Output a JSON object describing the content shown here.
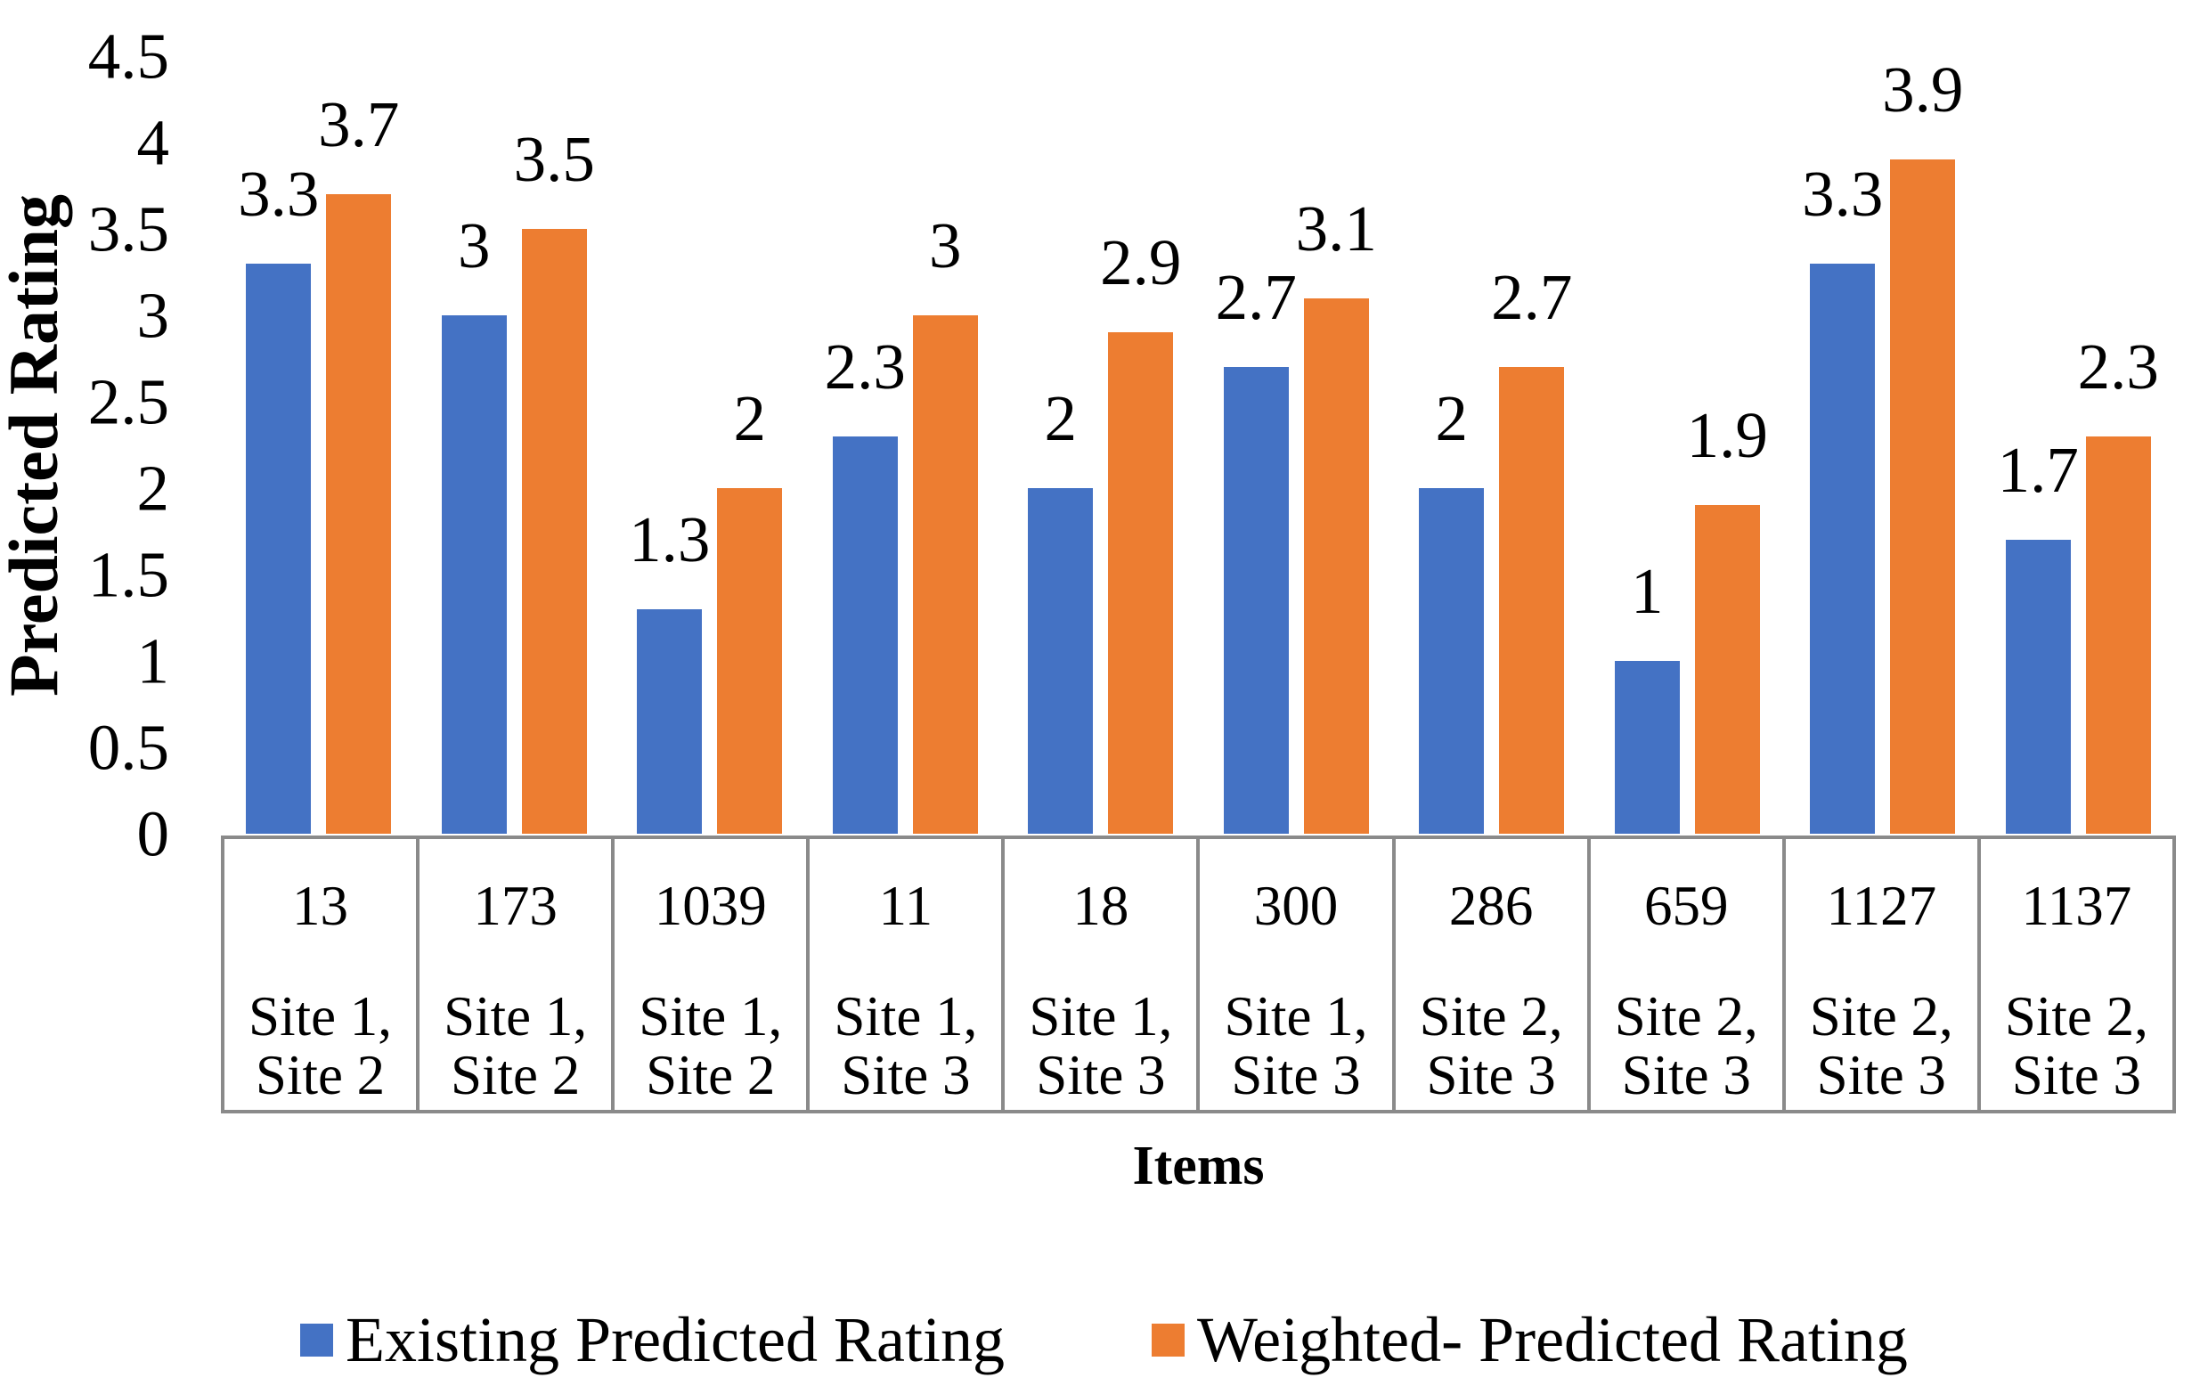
{
  "chart_data": {
    "type": "bar",
    "title": "",
    "xlabel": "Items",
    "ylabel": "Predicted Rating",
    "ylim": [
      0,
      4.5
    ],
    "yticks": [
      0,
      0.5,
      1,
      1.5,
      2,
      2.5,
      3,
      3.5,
      4,
      4.5
    ],
    "grid": false,
    "legend_position": "bottom",
    "categories": [
      {
        "item": "13",
        "site_line1": "Site 1,",
        "site_line2": "Site 2"
      },
      {
        "item": "173",
        "site_line1": "Site 1,",
        "site_line2": "Site 2"
      },
      {
        "item": "1039",
        "site_line1": "Site 1,",
        "site_line2": "Site 2"
      },
      {
        "item": "11",
        "site_line1": "Site 1,",
        "site_line2": "Site 3"
      },
      {
        "item": "18",
        "site_line1": "Site 1,",
        "site_line2": "Site 3"
      },
      {
        "item": "300",
        "site_line1": "Site 1,",
        "site_line2": "Site 3"
      },
      {
        "item": "286",
        "site_line1": "Site 2,",
        "site_line2": "Site 3"
      },
      {
        "item": "659",
        "site_line1": "Site 2,",
        "site_line2": "Site 3"
      },
      {
        "item": "1127",
        "site_line1": "Site 2,",
        "site_line2": "Site 3"
      },
      {
        "item": "1137",
        "site_line1": "Site 2,",
        "site_line2": "Site 3"
      }
    ],
    "series": [
      {
        "name": "Existing Predicted Rating",
        "color": "#4472C4",
        "values": [
          3.3,
          3,
          1.3,
          2.3,
          2,
          2.7,
          2,
          1,
          3.3,
          1.7
        ]
      },
      {
        "name": "Weighted- Predicted Rating",
        "color": "#ED7D31",
        "values": [
          3.7,
          3.5,
          2,
          3,
          2.9,
          3.1,
          2.7,
          1.9,
          3.9,
          2.3
        ]
      }
    ]
  },
  "colors": {
    "table_border": "#8a8a8a",
    "text": "#000000",
    "background": "#ffffff"
  }
}
